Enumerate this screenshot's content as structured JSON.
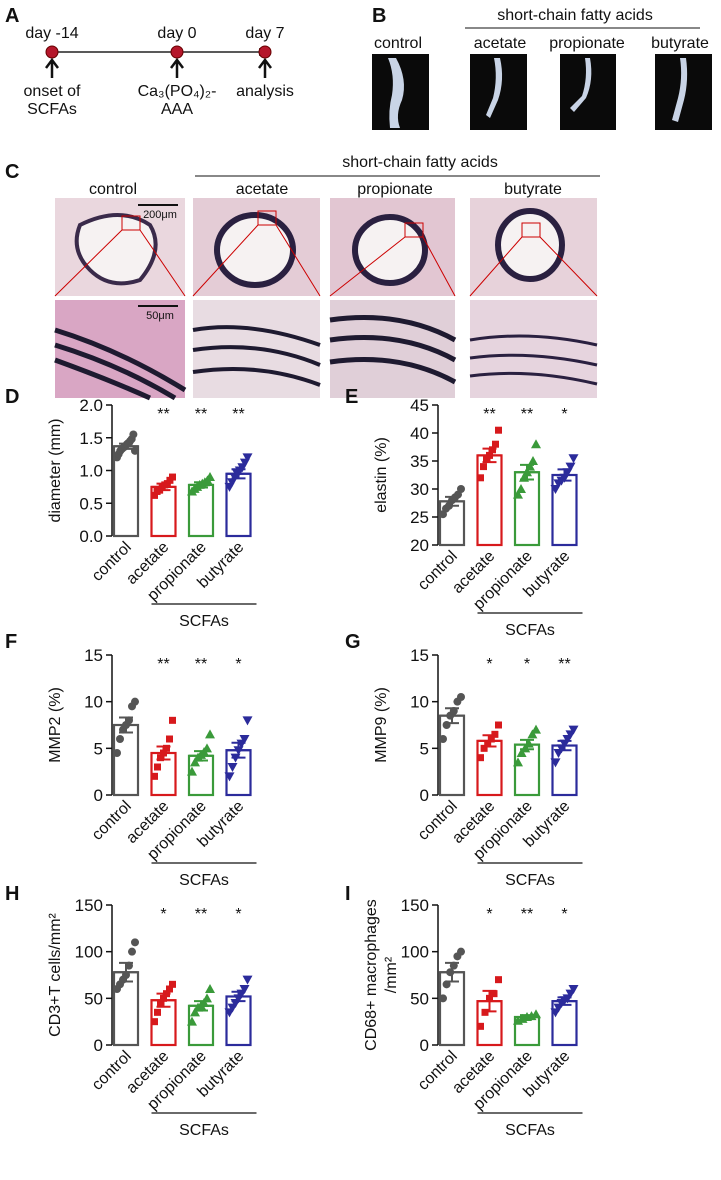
{
  "panels": {
    "A": {
      "letter": "A",
      "timepoints": [
        {
          "day": "day -14",
          "event": [
            "onset of",
            "SCFAs"
          ]
        },
        {
          "day": "day 0",
          "event": [
            "Ca₃(PO₄)₂-",
            "AAA"
          ]
        },
        {
          "day": "day 7",
          "event": [
            "analysis"
          ]
        }
      ]
    },
    "B": {
      "letter": "B",
      "group_label": "short-chain fatty acids",
      "labels": [
        "control",
        "acetate",
        "propionate",
        "butyrate"
      ]
    },
    "C": {
      "letter": "C",
      "group_label": "short-chain fatty acids",
      "labels": [
        "control",
        "acetate",
        "propionate",
        "butyrate"
      ],
      "scale_bars": [
        "200μm",
        "50μm"
      ]
    }
  },
  "chart_data": [
    {
      "type": "bar",
      "panel": "D",
      "ylabel": "diameter (mm)",
      "categories": [
        "control",
        "acetate",
        "propionate",
        "butyrate"
      ],
      "colors": [
        "#555555",
        "#d7191c",
        "#3a9a3a",
        "#2b2b9b"
      ],
      "markers": [
        "circle",
        "square",
        "triangle",
        "triangle-down"
      ],
      "values": [
        1.37,
        0.75,
        0.78,
        0.95
      ],
      "errors": [
        0.04,
        0.05,
        0.04,
        0.07
      ],
      "points": [
        [
          1.2,
          1.25,
          1.3,
          1.33,
          1.35,
          1.37,
          1.4,
          1.42,
          1.45,
          1.48,
          1.55,
          1.3
        ],
        [
          0.62,
          0.68,
          0.7,
          0.75,
          0.78,
          0.8,
          0.85,
          0.9
        ],
        [
          0.68,
          0.72,
          0.75,
          0.78,
          0.8,
          0.82,
          0.85,
          0.9
        ],
        [
          0.75,
          0.82,
          0.9,
          0.95,
          1.0,
          1.05,
          1.12,
          1.2
        ]
      ],
      "stars": [
        null,
        "**",
        "**",
        "**"
      ],
      "ylim": [
        0,
        2
      ],
      "yticks": [
        {
          "value": 0,
          "label": "0.0"
        },
        {
          "value": 0.5,
          "label": "0.5"
        },
        {
          "value": 1,
          "label": "1.0"
        },
        {
          "value": 1.5,
          "label": "1.5"
        },
        {
          "value": 2,
          "label": "2.0"
        }
      ],
      "group_label": "SCFAs"
    },
    {
      "type": "bar",
      "panel": "E",
      "ylabel": "elastin (%)",
      "categories": [
        "control",
        "acetate",
        "propionate",
        "butyrate"
      ],
      "colors": [
        "#555555",
        "#d7191c",
        "#3a9a3a",
        "#2b2b9b"
      ],
      "markers": [
        "circle",
        "square",
        "triangle",
        "triangle-down"
      ],
      "values": [
        27.8,
        36,
        33,
        32.5
      ],
      "errors": [
        0.8,
        1.2,
        1.3,
        1
      ],
      "points": [
        [
          25.5,
          26.5,
          27,
          28,
          28.5,
          29,
          30
        ],
        [
          32,
          34,
          35.5,
          36,
          37,
          38,
          40.5
        ],
        [
          29,
          30,
          32,
          33,
          34,
          35,
          38
        ],
        [
          30,
          31,
          31.5,
          32,
          33,
          34,
          35.5
        ]
      ],
      "stars": [
        null,
        "**",
        "**",
        "*"
      ],
      "ylim": [
        20,
        45
      ],
      "yticks": [
        20,
        25,
        30,
        35,
        40,
        45
      ],
      "group_label": "SCFAs"
    },
    {
      "type": "bar",
      "panel": "F",
      "ylabel": "MMP2 (%)",
      "categories": [
        "control",
        "acetate",
        "propionate",
        "butyrate"
      ],
      "colors": [
        "#555555",
        "#d7191c",
        "#3a9a3a",
        "#2b2b9b"
      ],
      "markers": [
        "circle",
        "square",
        "triangle",
        "triangle-down"
      ],
      "values": [
        7.5,
        4.5,
        4.2,
        4.8
      ],
      "errors": [
        0.8,
        0.7,
        0.5,
        0.8
      ],
      "points": [
        [
          4.5,
          6,
          7,
          7.5,
          8,
          9.5,
          10
        ],
        [
          2,
          3,
          4,
          4.5,
          5,
          6,
          8
        ],
        [
          2.5,
          3.5,
          4,
          4.3,
          4.6,
          5,
          6.5
        ],
        [
          2,
          3,
          4,
          4.8,
          5.5,
          6,
          8
        ]
      ],
      "stars": [
        null,
        "**",
        "**",
        "*"
      ],
      "ylim": [
        0,
        15
      ],
      "yticks": [
        0,
        5,
        10,
        15
      ],
      "group_label": "SCFAs"
    },
    {
      "type": "bar",
      "panel": "G",
      "ylabel": "MMP9 (%)",
      "categories": [
        "control",
        "acetate",
        "propionate",
        "butyrate"
      ],
      "colors": [
        "#555555",
        "#d7191c",
        "#3a9a3a",
        "#2b2b9b"
      ],
      "markers": [
        "circle",
        "square",
        "triangle",
        "triangle-down"
      ],
      "values": [
        8.5,
        5.8,
        5.4,
        5.3
      ],
      "errors": [
        0.8,
        0.6,
        0.5,
        0.5
      ],
      "points": [
        [
          6,
          7.5,
          8.5,
          9,
          10,
          10.5
        ],
        [
          4,
          5,
          5.5,
          6,
          6.5,
          7.5
        ],
        [
          3.5,
          4.5,
          5,
          5.5,
          6.5,
          7
        ],
        [
          3.5,
          4.5,
          5,
          5.5,
          6,
          6.5,
          7
        ]
      ],
      "stars": [
        null,
        "*",
        "*",
        "**"
      ],
      "ylim": [
        0,
        15
      ],
      "yticks": [
        0,
        5,
        10,
        15
      ],
      "group_label": "SCFAs"
    },
    {
      "type": "bar",
      "panel": "H",
      "ylabel": "CD3+T cells/mm²",
      "categories": [
        "control",
        "acetate",
        "propionate",
        "butyrate"
      ],
      "colors": [
        "#555555",
        "#d7191c",
        "#3a9a3a",
        "#2b2b9b"
      ],
      "markers": [
        "circle",
        "square",
        "triangle",
        "triangle-down"
      ],
      "values": [
        78,
        48,
        42,
        52
      ],
      "errors": [
        10,
        7,
        5,
        5
      ],
      "points": [
        [
          60,
          65,
          70,
          75,
          85,
          100,
          110
        ],
        [
          25,
          35,
          45,
          50,
          55,
          60,
          65
        ],
        [
          25,
          35,
          40,
          42,
          45,
          50,
          60
        ],
        [
          35,
          40,
          45,
          50,
          55,
          60,
          70
        ]
      ],
      "stars": [
        null,
        "*",
        "**",
        "*"
      ],
      "ylim": [
        0,
        150
      ],
      "yticks": [
        0,
        50,
        100,
        150
      ],
      "group_label": "SCFAs"
    },
    {
      "type": "bar",
      "panel": "I",
      "ylabel": [
        "CD68+ macrophages",
        "/mm²"
      ],
      "categories": [
        "control",
        "acetate",
        "propionate",
        "butyrate"
      ],
      "colors": [
        "#555555",
        "#d7191c",
        "#3a9a3a",
        "#2b2b9b"
      ],
      "markers": [
        "circle",
        "square",
        "triangle",
        "triangle-down"
      ],
      "values": [
        78,
        47,
        30,
        47
      ],
      "errors": [
        10,
        11,
        2,
        4
      ],
      "points": [
        [
          50,
          65,
          78,
          85,
          95,
          100
        ],
        [
          20,
          35,
          50,
          55,
          70
        ],
        [
          26,
          28,
          30,
          31,
          33
        ],
        [
          35,
          40,
          45,
          48,
          50,
          55,
          60
        ]
      ],
      "stars": [
        null,
        "*",
        "**",
        "*"
      ],
      "ylim": [
        0,
        150
      ],
      "yticks": [
        0,
        50,
        100,
        150
      ],
      "group_label": "SCFAs"
    }
  ]
}
